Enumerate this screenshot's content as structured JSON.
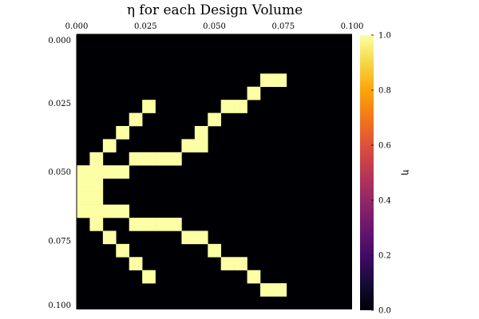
{
  "chart_data": {
    "type": "heatmap",
    "title": "η for each Design Volume",
    "x_axis": {
      "position": "top",
      "range": [
        0.0,
        0.1
      ],
      "ticks": [
        "0.000",
        "0.025",
        "0.050",
        "0.075",
        "0.100"
      ]
    },
    "y_axis": {
      "range": [
        0.0,
        0.1
      ],
      "inverted": true,
      "ticks": [
        "0.000",
        "0.025",
        "0.050",
        "0.075",
        "0.100"
      ]
    },
    "grid": {
      "rows": 21,
      "cols": 21,
      "cell_size": 0.005
    },
    "values_note": "cells not listed are 0.0",
    "filled_value": 1.0,
    "filled_cells": [
      [
        3,
        14
      ],
      [
        3,
        15
      ],
      [
        4,
        13
      ],
      [
        5,
        5
      ],
      [
        5,
        11
      ],
      [
        5,
        12
      ],
      [
        6,
        4
      ],
      [
        6,
        10
      ],
      [
        7,
        3
      ],
      [
        7,
        9
      ],
      [
        8,
        2
      ],
      [
        8,
        8
      ],
      [
        8,
        9
      ],
      [
        9,
        1
      ],
      [
        9,
        4
      ],
      [
        9,
        5
      ],
      [
        9,
        6
      ],
      [
        9,
        7
      ],
      [
        10,
        0
      ],
      [
        10,
        1
      ],
      [
        10,
        2
      ],
      [
        10,
        3
      ],
      [
        11,
        0
      ],
      [
        11,
        1
      ],
      [
        12,
        0
      ],
      [
        12,
        1
      ],
      [
        13,
        0
      ],
      [
        13,
        1
      ],
      [
        13,
        2
      ],
      [
        13,
        3
      ],
      [
        14,
        1
      ],
      [
        14,
        4
      ],
      [
        14,
        5
      ],
      [
        14,
        6
      ],
      [
        14,
        7
      ],
      [
        15,
        2
      ],
      [
        15,
        8
      ],
      [
        15,
        9
      ],
      [
        16,
        3
      ],
      [
        16,
        10
      ],
      [
        17,
        4
      ],
      [
        17,
        11
      ],
      [
        17,
        12
      ],
      [
        18,
        5
      ],
      [
        18,
        13
      ],
      [
        19,
        14
      ],
      [
        19,
        15
      ]
    ],
    "colorbar": {
      "label": "η",
      "range": [
        0.0,
        1.0
      ],
      "ticks": [
        "0.0",
        "0.2",
        "0.4",
        "0.6",
        "0.8",
        "1.0"
      ],
      "colormap": "inferno",
      "low_color": "#000004",
      "high_color": "#fcffa4"
    }
  }
}
